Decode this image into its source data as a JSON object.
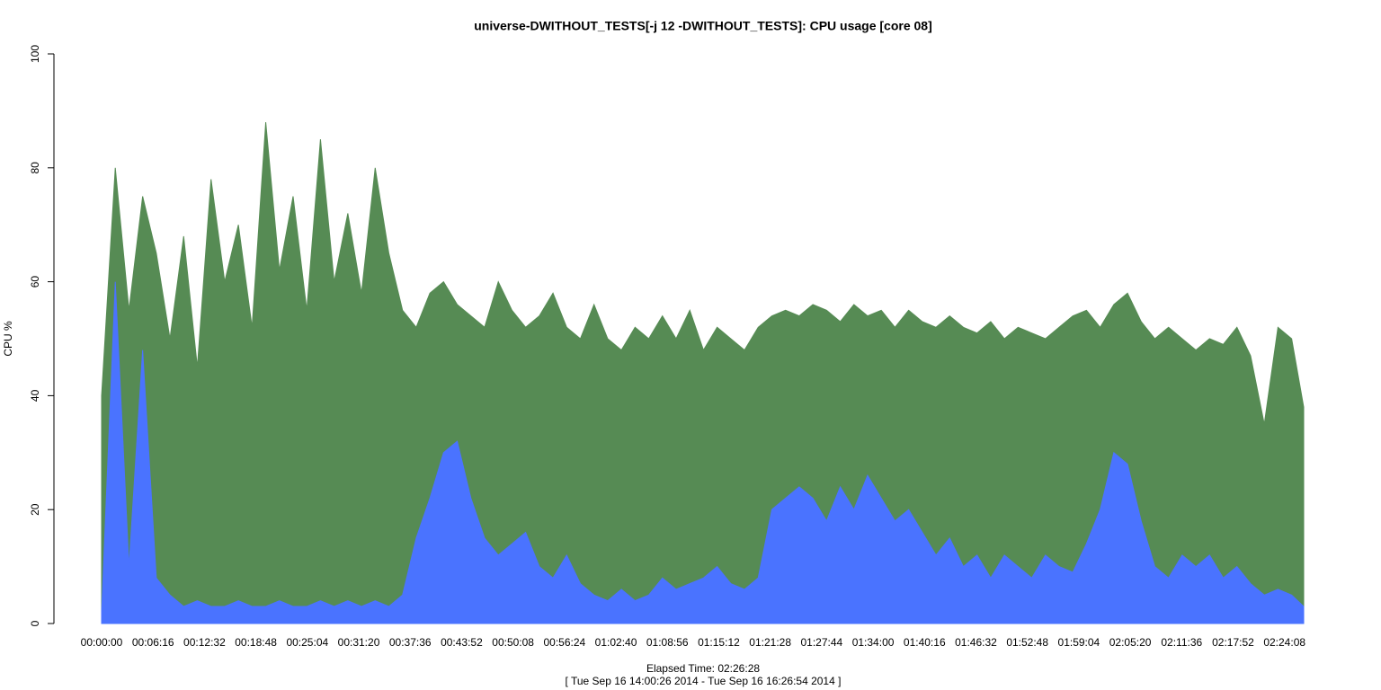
{
  "chart_data": {
    "type": "area",
    "title": "universe-DWITHOUT_TESTS[-j 12  -DWITHOUT_TESTS]: CPU usage [core 08]",
    "y_label": "CPU %",
    "x_label": "Elapsed Time: 02:26:28",
    "subtitle": "[ Tue Sep 16 14:00:26 2014 - Tue Sep 16 16:26:54 2014 ]",
    "x": [
      0,
      100,
      200,
      300,
      400,
      500,
      600,
      700,
      800,
      900,
      1000,
      1100,
      1200,
      1300,
      1400,
      1500,
      1600,
      1700,
      1800,
      1900,
      2000,
      2100,
      2200,
      2300,
      2400,
      2500,
      2600,
      2700,
      2800,
      2900,
      3000,
      3100,
      3200,
      3300,
      3400,
      3500,
      3600,
      3700,
      3800,
      3900,
      4000,
      4100,
      4200,
      4300,
      4400,
      4500,
      4600,
      4700,
      4800,
      4900,
      5000,
      5100,
      5200,
      5300,
      5400,
      5500,
      5600,
      5700,
      5800,
      5900,
      6000,
      6100,
      6200,
      6300,
      6400,
      6500,
      6600,
      6700,
      6800,
      6900,
      7000,
      7100,
      7200,
      7300,
      7400,
      7500,
      7600,
      7700,
      7800,
      7900,
      8000,
      8100,
      8200,
      8300,
      8400,
      8500,
      8600,
      8700,
      8788
    ],
    "series": [
      {
        "color": "#568b54",
        "values": [
          40,
          80,
          55,
          75,
          65,
          50,
          68,
          45,
          78,
          60,
          70,
          52,
          88,
          62,
          75,
          55,
          85,
          60,
          72,
          58,
          80,
          65,
          55,
          52,
          58,
          60,
          56,
          54,
          52,
          60,
          55,
          52,
          54,
          58,
          52,
          50,
          56,
          50,
          48,
          52,
          50,
          54,
          50,
          55,
          48,
          52,
          50,
          48,
          52,
          54,
          55,
          54,
          56,
          55,
          53,
          56,
          54,
          55,
          52,
          55,
          53,
          52,
          54,
          52,
          51,
          53,
          50,
          52,
          51,
          50,
          52,
          54,
          55,
          52,
          56,
          58,
          53,
          50,
          52,
          50,
          48,
          50,
          49,
          52,
          47,
          35,
          52,
          50,
          38
        ]
      },
      {
        "color": "#4a73ff",
        "values": [
          2,
          60,
          10,
          48,
          8,
          5,
          3,
          4,
          3,
          3,
          4,
          3,
          3,
          4,
          3,
          3,
          4,
          3,
          4,
          3,
          4,
          3,
          5,
          15,
          22,
          30,
          32,
          22,
          15,
          12,
          14,
          16,
          10,
          8,
          12,
          7,
          5,
          4,
          6,
          4,
          5,
          8,
          6,
          7,
          8,
          10,
          7,
          6,
          8,
          20,
          22,
          24,
          22,
          18,
          24,
          20,
          26,
          22,
          18,
          20,
          16,
          12,
          15,
          10,
          12,
          8,
          12,
          10,
          8,
          12,
          10,
          9,
          14,
          20,
          30,
          28,
          18,
          10,
          8,
          12,
          10,
          12,
          8,
          10,
          7,
          5,
          6,
          5,
          3
        ]
      }
    ],
    "xlim": [
      0,
      8788
    ],
    "ylim": [
      0,
      100
    ],
    "yticks": [
      0,
      20,
      40,
      60,
      80,
      100
    ],
    "xticks": [
      {
        "value": 0,
        "label": "00:00:00"
      },
      {
        "value": 376,
        "label": "00:06:16"
      },
      {
        "value": 752,
        "label": "00:12:32"
      },
      {
        "value": 1128,
        "label": "00:18:48"
      },
      {
        "value": 1504,
        "label": "00:25:04"
      },
      {
        "value": 1880,
        "label": "00:31:20"
      },
      {
        "value": 2256,
        "label": "00:37:36"
      },
      {
        "value": 2632,
        "label": "00:43:52"
      },
      {
        "value": 3008,
        "label": "00:50:08"
      },
      {
        "value": 3384,
        "label": "00:56:24"
      },
      {
        "value": 3760,
        "label": "01:02:40"
      },
      {
        "value": 4136,
        "label": "01:08:56"
      },
      {
        "value": 4512,
        "label": "01:15:12"
      },
      {
        "value": 4888,
        "label": "01:21:28"
      },
      {
        "value": 5264,
        "label": "01:27:44"
      },
      {
        "value": 5640,
        "label": "01:34:00"
      },
      {
        "value": 6016,
        "label": "01:40:16"
      },
      {
        "value": 6392,
        "label": "01:46:32"
      },
      {
        "value": 6768,
        "label": "01:52:48"
      },
      {
        "value": 7144,
        "label": "01:59:04"
      },
      {
        "value": 7520,
        "label": "02:05:20"
      },
      {
        "value": 7896,
        "label": "02:11:36"
      },
      {
        "value": 8272,
        "label": "02:17:52"
      },
      {
        "value": 8648,
        "label": "02:24:08"
      }
    ]
  }
}
